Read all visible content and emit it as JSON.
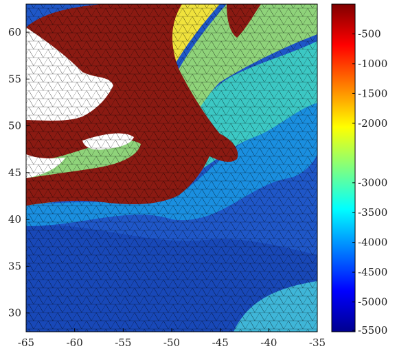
{
  "chart_data": {
    "type": "heatmap",
    "title": "",
    "xlabel": "",
    "ylabel": "",
    "colorbar_label": "",
    "x_range": [
      -65,
      -35
    ],
    "y_range": [
      28,
      63
    ],
    "x_ticks": [
      "-65",
      "-60",
      "-55",
      "-50",
      "-45",
      "-40",
      "-35"
    ],
    "y_ticks": [
      "60",
      "55",
      "50",
      "45",
      "40",
      "35",
      "30"
    ],
    "colorbar_range": [
      -5500,
      0
    ],
    "colorbar_ticks": [
      "-500",
      "-1000",
      "-1500",
      "-2000",
      "-3000",
      "-3500",
      "-4000",
      "-4500",
      "-5000",
      "-5500"
    ],
    "colormap": "jet",
    "land_color": "#8b1a12",
    "mesh": "triangular unstructured grid",
    "grid": false
  }
}
